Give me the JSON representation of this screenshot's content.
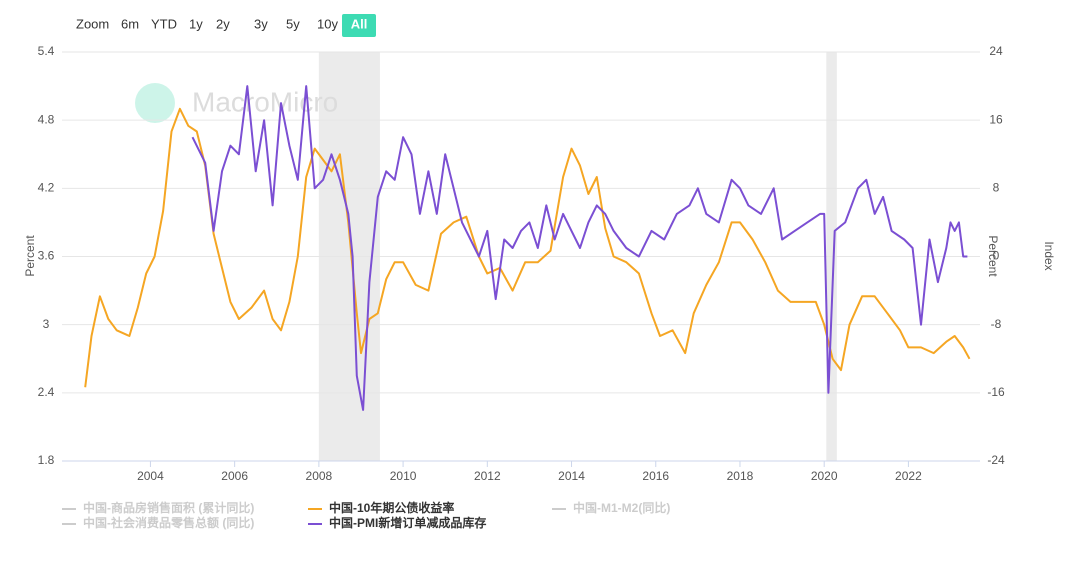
{
  "zoom": {
    "label": "Zoom",
    "buttons": [
      "6m",
      "YTD",
      "1y",
      "2y",
      "3y",
      "5y",
      "10y",
      "All"
    ],
    "active": 7
  },
  "watermark": "MacroMicro",
  "chart_data": {
    "type": "line",
    "ylabel": "Percent",
    "y2label": "Percent",
    "y3label": "Index",
    "xlim": [
      2001.9,
      2023.7
    ],
    "xticks": [
      2004,
      2006,
      2008,
      2010,
      2012,
      2014,
      2016,
      2018,
      2020,
      2022
    ],
    "ylim": [
      1.8,
      5.4
    ],
    "yticks": [
      1.8,
      2.4,
      3,
      3.6,
      4.2,
      4.8,
      5.4
    ],
    "y2lim": [
      -24,
      24
    ],
    "y2ticks": [
      -24,
      -16,
      -8,
      0,
      8,
      16,
      24
    ],
    "grid": true,
    "shaded": [
      [
        2008.0,
        2009.45
      ],
      [
        2020.05,
        2020.3
      ]
    ],
    "shade_color": "#ebebeb",
    "legend_hidden": [
      "中国-商品房销售面积 (累计同比)",
      "中国-M1-M2(同比)",
      "中国-社会消费品零售总额 (同比)"
    ],
    "series": [
      {
        "name": "中国-10年期公债收益率",
        "color": "#f5a623",
        "x": [
          2002.45,
          2002.6,
          2002.8,
          2003.0,
          2003.2,
          2003.5,
          2003.7,
          2003.9,
          2004.1,
          2004.3,
          2004.5,
          2004.7,
          2004.9,
          2005.1,
          2005.3,
          2005.5,
          2005.7,
          2005.9,
          2006.1,
          2006.4,
          2006.7,
          2006.9,
          2007.1,
          2007.3,
          2007.5,
          2007.7,
          2007.9,
          2008.1,
          2008.3,
          2008.5,
          2008.7,
          2008.9,
          2009.0,
          2009.2,
          2009.4,
          2009.6,
          2009.8,
          2010.0,
          2010.3,
          2010.6,
          2010.9,
          2011.2,
          2011.5,
          2011.8,
          2012.0,
          2012.3,
          2012.6,
          2012.9,
          2013.2,
          2013.5,
          2013.8,
          2014.0,
          2014.2,
          2014.4,
          2014.6,
          2014.8,
          2015.0,
          2015.3,
          2015.6,
          2015.9,
          2016.1,
          2016.4,
          2016.7,
          2016.9,
          2017.2,
          2017.5,
          2017.8,
          2018.0,
          2018.3,
          2018.6,
          2018.9,
          2019.2,
          2019.5,
          2019.8,
          2020.0,
          2020.2,
          2020.4,
          2020.6,
          2020.9,
          2021.2,
          2021.5,
          2021.8,
          2022.0,
          2022.3,
          2022.6,
          2022.9,
          2023.1,
          2023.3,
          2023.45
        ],
        "values": [
          2.45,
          2.9,
          3.25,
          3.05,
          2.95,
          2.9,
          3.15,
          3.45,
          3.6,
          4.0,
          4.7,
          4.9,
          4.75,
          4.7,
          4.4,
          3.8,
          3.5,
          3.2,
          3.05,
          3.15,
          3.3,
          3.05,
          2.95,
          3.2,
          3.6,
          4.3,
          4.55,
          4.45,
          4.35,
          4.5,
          3.9,
          3.1,
          2.75,
          3.05,
          3.1,
          3.4,
          3.55,
          3.55,
          3.35,
          3.3,
          3.8,
          3.9,
          3.95,
          3.6,
          3.45,
          3.5,
          3.3,
          3.55,
          3.55,
          3.65,
          4.3,
          4.55,
          4.4,
          4.15,
          4.3,
          3.85,
          3.6,
          3.55,
          3.45,
          3.1,
          2.9,
          2.95,
          2.75,
          3.1,
          3.35,
          3.55,
          3.9,
          3.9,
          3.75,
          3.55,
          3.3,
          3.2,
          3.2,
          3.2,
          3.0,
          2.7,
          2.6,
          3.0,
          3.25,
          3.25,
          3.1,
          2.95,
          2.8,
          2.8,
          2.75,
          2.85,
          2.9,
          2.8,
          2.7
        ]
      },
      {
        "name": "中国-PMI新增订单减成品库存",
        "color": "#7b4fd3",
        "axis": "y2",
        "x": [
          2005.0,
          2005.3,
          2005.5,
          2005.7,
          2005.9,
          2006.1,
          2006.3,
          2006.5,
          2006.7,
          2006.9,
          2007.1,
          2007.3,
          2007.5,
          2007.7,
          2007.9,
          2008.1,
          2008.3,
          2008.5,
          2008.7,
          2008.8,
          2008.9,
          2009.05,
          2009.2,
          2009.4,
          2009.6,
          2009.8,
          2010.0,
          2010.2,
          2010.4,
          2010.6,
          2010.8,
          2011.0,
          2011.2,
          2011.4,
          2011.6,
          2011.8,
          2012.0,
          2012.2,
          2012.4,
          2012.6,
          2012.8,
          2013.0,
          2013.2,
          2013.4,
          2013.6,
          2013.8,
          2014.0,
          2014.2,
          2014.4,
          2014.6,
          2014.8,
          2015.0,
          2015.3,
          2015.6,
          2015.9,
          2016.2,
          2016.5,
          2016.8,
          2017.0,
          2017.2,
          2017.5,
          2017.8,
          2018.0,
          2018.2,
          2018.5,
          2018.8,
          2019.0,
          2019.3,
          2019.6,
          2019.9,
          2020.0,
          2020.1,
          2020.25,
          2020.5,
          2020.8,
          2021.0,
          2021.2,
          2021.4,
          2021.6,
          2021.9,
          2022.1,
          2022.3,
          2022.5,
          2022.7,
          2022.9,
          2023.0,
          2023.1,
          2023.2,
          2023.3,
          2023.4
        ],
        "values": [
          14,
          11,
          3,
          10,
          13,
          12,
          20,
          10,
          16,
          6,
          18,
          13,
          9,
          20,
          8,
          9,
          12,
          9,
          5,
          0,
          -14,
          -18,
          -3,
          7,
          10,
          9,
          14,
          12,
          5,
          10,
          5,
          12,
          8,
          4,
          2,
          0,
          3,
          -5,
          2,
          1,
          3,
          4,
          1,
          6,
          2,
          5,
          3,
          1,
          4,
          6,
          5,
          3,
          1,
          0,
          3,
          2,
          5,
          6,
          8,
          5,
          4,
          9,
          8,
          6,
          5,
          8,
          2,
          3,
          4,
          5,
          5,
          -16,
          3,
          4,
          8,
          9,
          5,
          7,
          3,
          2,
          1,
          -8,
          2,
          -3,
          1,
          4,
          3,
          4,
          0,
          0
        ]
      }
    ]
  }
}
